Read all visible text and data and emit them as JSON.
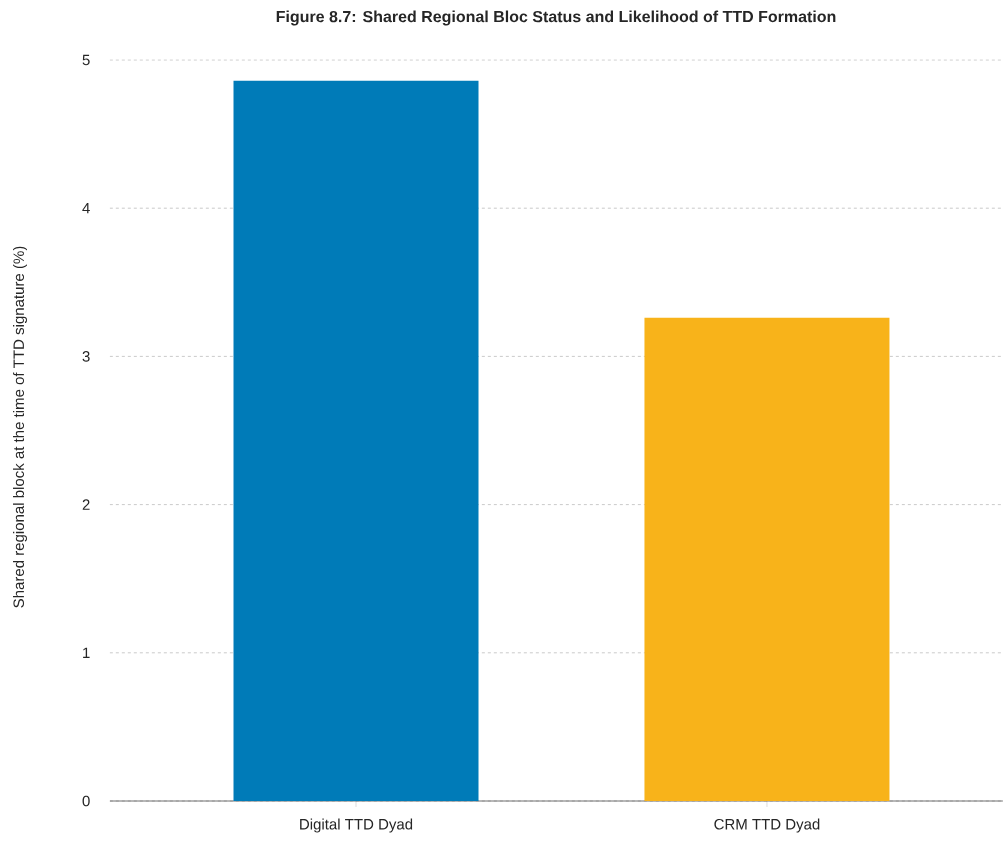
{
  "chart_data": {
    "type": "bar",
    "title": "Figure 8.7: Shared Regional Bloc Status and Likelihood of TTD Formation",
    "ylabel": "Shared regional block at the time of TTD signature (%)",
    "categories": [
      "Digital TTD Dyad",
      "CRM TTD Dyad"
    ],
    "values": [
      4.86,
      3.26
    ],
    "colors": [
      "#007bb8",
      "#f8b31a"
    ],
    "ylim": [
      0,
      5
    ],
    "yticks": [
      0,
      1,
      2,
      3,
      4,
      5
    ],
    "grid": "y"
  }
}
